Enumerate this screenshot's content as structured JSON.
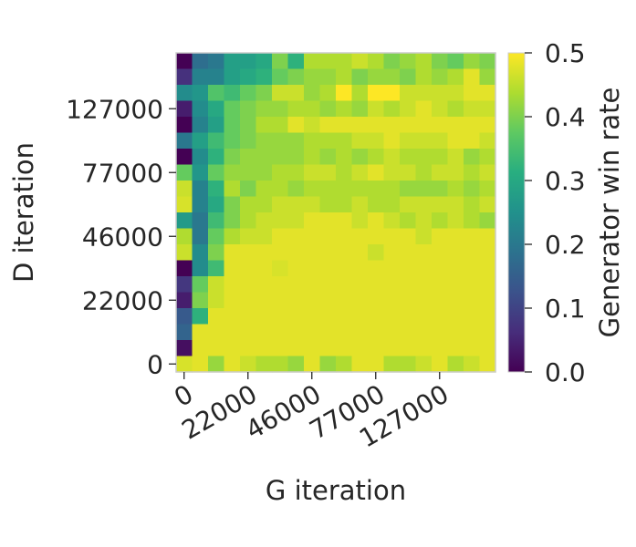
{
  "chart_data": {
    "type": "heatmap",
    "xlabel": "G iteration",
    "ylabel": "D iteration",
    "x_tick_labels": [
      "0",
      "22000",
      "46000",
      "77000",
      "127000"
    ],
    "y_tick_labels": [
      "0",
      "22000",
      "46000",
      "77000",
      "127000"
    ],
    "colorbar": {
      "label": "Generator win rate",
      "min": 0.0,
      "max": 0.5,
      "tick_labels": [
        "0.0",
        "0.1",
        "0.2",
        "0.3",
        "0.4",
        "0.5"
      ],
      "colormap": "viridis"
    },
    "grid": false,
    "rows_note": "values listed from top row (highest D iteration) to bottom row (D iteration 0); columns from G iteration 0 to max",
    "values": [
      [
        0.0,
        0.18,
        0.2,
        0.28,
        0.28,
        0.3,
        0.4,
        0.32,
        0.44,
        0.44,
        0.44,
        0.46,
        0.44,
        0.4,
        0.42,
        0.44,
        0.4,
        0.38,
        0.42,
        0.4
      ],
      [
        0.07,
        0.22,
        0.22,
        0.28,
        0.3,
        0.32,
        0.38,
        0.4,
        0.42,
        0.42,
        0.44,
        0.4,
        0.42,
        0.42,
        0.4,
        0.44,
        0.42,
        0.44,
        0.48,
        0.42
      ],
      [
        0.24,
        0.26,
        0.36,
        0.34,
        0.38,
        0.4,
        0.46,
        0.46,
        0.42,
        0.44,
        0.5,
        0.44,
        0.5,
        0.5,
        0.46,
        0.46,
        0.46,
        0.46,
        0.48,
        0.48
      ],
      [
        0.04,
        0.24,
        0.3,
        0.38,
        0.4,
        0.42,
        0.42,
        0.44,
        0.44,
        0.42,
        0.44,
        0.42,
        0.46,
        0.44,
        0.46,
        0.48,
        0.46,
        0.44,
        0.46,
        0.46
      ],
      [
        0.0,
        0.22,
        0.28,
        0.38,
        0.4,
        0.44,
        0.44,
        0.48,
        0.46,
        0.48,
        0.48,
        0.48,
        0.48,
        0.48,
        0.48,
        0.48,
        0.48,
        0.48,
        0.48,
        0.48
      ],
      [
        0.2,
        0.28,
        0.34,
        0.38,
        0.4,
        0.42,
        0.42,
        0.42,
        0.44,
        0.44,
        0.44,
        0.46,
        0.46,
        0.48,
        0.46,
        0.46,
        0.46,
        0.48,
        0.48,
        0.46
      ],
      [
        0.0,
        0.24,
        0.32,
        0.4,
        0.42,
        0.42,
        0.42,
        0.42,
        0.44,
        0.42,
        0.44,
        0.42,
        0.44,
        0.46,
        0.44,
        0.44,
        0.44,
        0.46,
        0.42,
        0.44
      ],
      [
        0.38,
        0.26,
        0.38,
        0.42,
        0.42,
        0.42,
        0.44,
        0.44,
        0.46,
        0.46,
        0.44,
        0.46,
        0.48,
        0.46,
        0.46,
        0.44,
        0.46,
        0.46,
        0.44,
        0.46
      ],
      [
        0.46,
        0.22,
        0.32,
        0.44,
        0.4,
        0.44,
        0.44,
        0.42,
        0.44,
        0.44,
        0.44,
        0.44,
        0.44,
        0.44,
        0.42,
        0.42,
        0.42,
        0.44,
        0.42,
        0.44
      ],
      [
        0.47,
        0.22,
        0.3,
        0.4,
        0.44,
        0.44,
        0.46,
        0.46,
        0.46,
        0.44,
        0.44,
        0.46,
        0.44,
        0.44,
        0.46,
        0.46,
        0.46,
        0.46,
        0.44,
        0.46
      ],
      [
        0.27,
        0.2,
        0.34,
        0.4,
        0.44,
        0.46,
        0.46,
        0.46,
        0.48,
        0.48,
        0.48,
        0.46,
        0.48,
        0.46,
        0.44,
        0.46,
        0.44,
        0.46,
        0.44,
        0.42
      ],
      [
        0.44,
        0.2,
        0.38,
        0.44,
        0.46,
        0.46,
        0.48,
        0.48,
        0.48,
        0.48,
        0.48,
        0.48,
        0.48,
        0.48,
        0.48,
        0.46,
        0.48,
        0.48,
        0.48,
        0.48
      ],
      [
        0.46,
        0.24,
        0.4,
        0.48,
        0.48,
        0.48,
        0.48,
        0.48,
        0.48,
        0.48,
        0.48,
        0.48,
        0.46,
        0.48,
        0.48,
        0.48,
        0.48,
        0.48,
        0.48,
        0.48
      ],
      [
        0.0,
        0.24,
        0.34,
        0.48,
        0.48,
        0.48,
        0.47,
        0.48,
        0.48,
        0.48,
        0.48,
        0.48,
        0.48,
        0.48,
        0.48,
        0.48,
        0.48,
        0.48,
        0.48,
        0.48
      ],
      [
        0.08,
        0.38,
        0.46,
        0.48,
        0.48,
        0.48,
        0.48,
        0.48,
        0.48,
        0.48,
        0.48,
        0.48,
        0.48,
        0.48,
        0.48,
        0.48,
        0.48,
        0.48,
        0.48,
        0.48
      ],
      [
        0.04,
        0.4,
        0.46,
        0.48,
        0.48,
        0.48,
        0.48,
        0.48,
        0.48,
        0.48,
        0.48,
        0.48,
        0.48,
        0.48,
        0.48,
        0.48,
        0.48,
        0.48,
        0.48,
        0.48
      ],
      [
        0.14,
        0.32,
        0.48,
        0.48,
        0.48,
        0.48,
        0.48,
        0.48,
        0.48,
        0.48,
        0.48,
        0.48,
        0.48,
        0.48,
        0.48,
        0.48,
        0.48,
        0.48,
        0.48,
        0.48
      ],
      [
        0.16,
        0.48,
        0.48,
        0.48,
        0.48,
        0.48,
        0.48,
        0.48,
        0.48,
        0.48,
        0.48,
        0.48,
        0.48,
        0.48,
        0.48,
        0.48,
        0.48,
        0.48,
        0.48,
        0.48
      ],
      [
        0.02,
        0.48,
        0.48,
        0.48,
        0.48,
        0.48,
        0.48,
        0.48,
        0.48,
        0.48,
        0.48,
        0.48,
        0.48,
        0.48,
        0.48,
        0.48,
        0.48,
        0.48,
        0.48,
        0.48
      ],
      [
        0.47,
        0.48,
        0.42,
        0.48,
        0.46,
        0.44,
        0.44,
        0.42,
        0.48,
        0.42,
        0.44,
        0.48,
        0.48,
        0.44,
        0.44,
        0.46,
        0.48,
        0.44,
        0.46,
        0.48
      ]
    ]
  }
}
